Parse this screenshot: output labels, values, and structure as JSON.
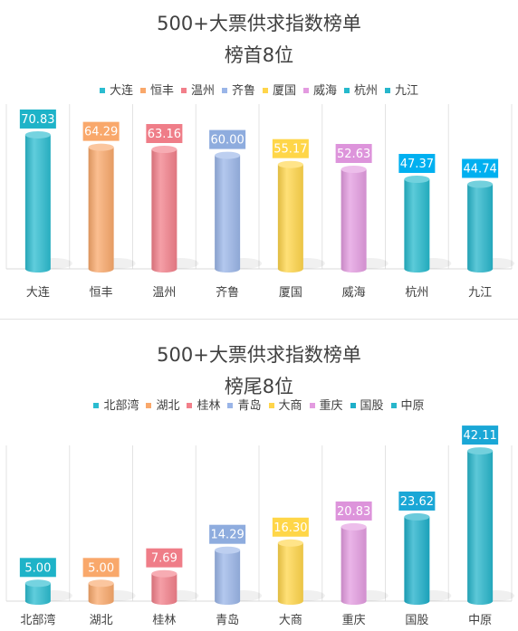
{
  "chart_data": [
    {
      "type": "bar",
      "title": "500+大票供求指数榜单",
      "subtitle": "榜首8位",
      "categories": [
        "大连",
        "恒丰",
        "温州",
        "齐鲁",
        "厦国",
        "威海",
        "杭州",
        "九江"
      ],
      "values": [
        70.83,
        64.29,
        63.16,
        60.0,
        55.17,
        52.63,
        47.37,
        44.74
      ],
      "labels": [
        "70.83",
        "64.29",
        "63.16",
        "60.00",
        "55.17",
        "52.63",
        "47.37",
        "44.74"
      ],
      "colors": [
        "#2bbcd0",
        "#f9a86b",
        "#f27f8a",
        "#9ab5e8",
        "#ffd54a",
        "#e39be0",
        "#25b9cc",
        "#27b6cb"
      ],
      "label_colors": [
        "#1eb3c8",
        "#f9a86b",
        "#ef7d88",
        "#8eacde",
        "#ffd648",
        "#dd94db",
        "#00b0f0",
        "#00b0f0"
      ],
      "legend": [
        "大连",
        "恒丰",
        "温州",
        "齐鲁",
        "厦国",
        "威海",
        "杭州",
        "九江"
      ],
      "ylim": [
        0,
        100
      ],
      "grid": "vertical"
    },
    {
      "type": "bar",
      "title": "500+大票供求指数榜单",
      "subtitle": "榜尾8位",
      "categories": [
        "北部湾",
        "湖北",
        "桂林",
        "青岛",
        "大商",
        "重庆",
        "国股",
        "中原"
      ],
      "values": [
        5.0,
        5.0,
        7.69,
        14.29,
        16.3,
        20.83,
        23.62,
        42.11
      ],
      "labels": [
        "5.00",
        "5.00",
        "7.69",
        "14.29",
        "16.30",
        "20.83",
        "23.62",
        "42.11"
      ],
      "colors": [
        "#2bbcd0",
        "#f9a86b",
        "#f27f8a",
        "#9ab5e8",
        "#ffd54a",
        "#e39be0",
        "#1dafc9",
        "#27b6cb"
      ],
      "label_colors": [
        "#1eb3c8",
        "#f9a86b",
        "#ef7d88",
        "#8eacde",
        "#ffd648",
        "#dd94db",
        "#1aa7d6",
        "#1aa7d6"
      ],
      "legend": [
        "北部湾",
        "湖北",
        "桂林",
        "青岛",
        "大商",
        "重庆",
        "国股",
        "中原"
      ],
      "ylim": [
        0,
        50
      ],
      "grid": "vertical"
    }
  ]
}
